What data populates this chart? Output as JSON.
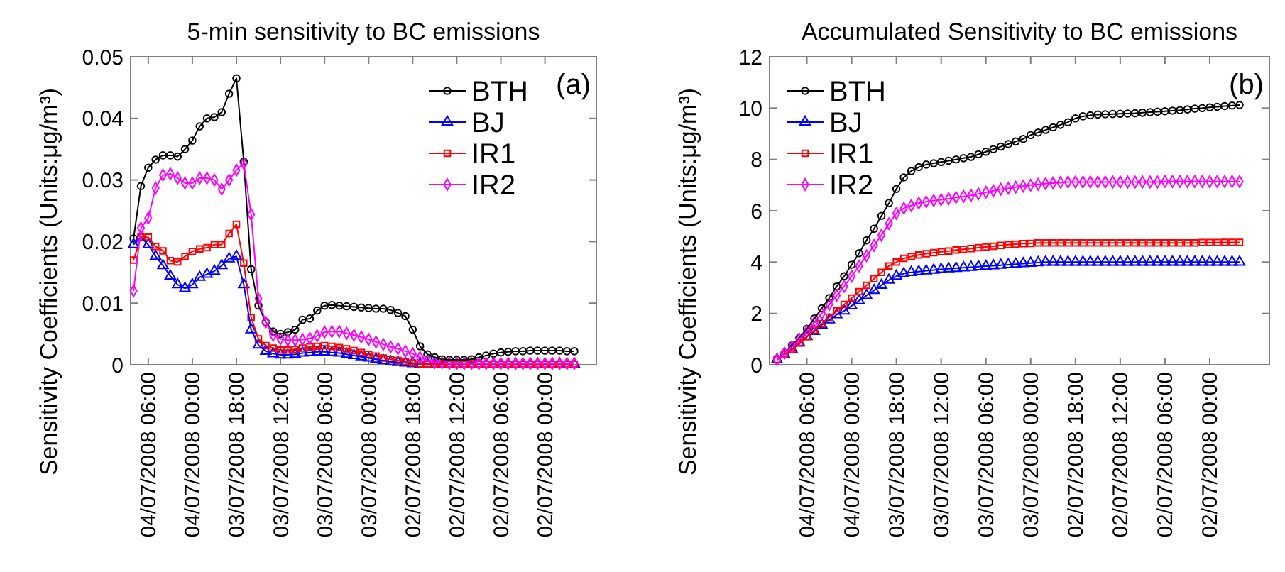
{
  "chart_data": [
    {
      "type": "line",
      "title": "5-min sensitivity to BC emissions",
      "ylabel": "Sensitivity Coefficients (Units:μg/m³)",
      "annotations": [
        "(a)"
      ],
      "legend": "top right",
      "grid": false,
      "x": [
        "2008-07-04T08:00",
        "2008-07-04T07:00",
        "2008-07-04T06:00",
        "2008-07-04T05:00",
        "2008-07-04T04:00",
        "2008-07-04T03:00",
        "2008-07-04T02:00",
        "2008-07-04T01:00",
        "2008-07-04T00:00",
        "2008-07-03T23:00",
        "2008-07-03T22:00",
        "2008-07-03T21:00",
        "2008-07-03T20:00",
        "2008-07-03T19:00",
        "2008-07-03T18:00",
        "2008-07-03T17:00",
        "2008-07-03T16:00",
        "2008-07-03T15:00",
        "2008-07-03T14:00",
        "2008-07-03T13:00",
        "2008-07-03T12:00",
        "2008-07-03T11:00",
        "2008-07-03T10:00",
        "2008-07-03T09:00",
        "2008-07-03T08:00",
        "2008-07-03T07:00",
        "2008-07-03T06:00",
        "2008-07-03T05:00",
        "2008-07-03T04:00",
        "2008-07-03T03:00",
        "2008-07-03T02:00",
        "2008-07-03T01:00",
        "2008-07-03T00:00",
        "2008-07-02T23:00",
        "2008-07-02T22:00",
        "2008-07-02T21:00",
        "2008-07-02T20:00",
        "2008-07-02T19:00",
        "2008-07-02T18:00",
        "2008-07-02T17:00",
        "2008-07-02T16:00",
        "2008-07-02T15:00",
        "2008-07-02T14:00",
        "2008-07-02T13:00",
        "2008-07-02T12:00",
        "2008-07-02T11:00",
        "2008-07-02T10:00",
        "2008-07-02T09:00",
        "2008-07-02T08:00",
        "2008-07-02T07:00",
        "2008-07-02T06:00",
        "2008-07-02T05:00",
        "2008-07-02T04:00",
        "2008-07-02T03:00",
        "2008-07-02T02:00",
        "2008-07-02T01:00",
        "2008-07-02T00:00",
        "2008-07-01T23:00",
        "2008-07-01T22:00",
        "2008-07-01T21:00",
        "2008-07-01T20:00"
      ],
      "xlim": [
        "2008-07-04T08:24",
        "2008-07-01T17:00"
      ],
      "ylim": [
        0,
        0.05
      ],
      "yticks": [
        0,
        0.01,
        0.02,
        0.03,
        0.04,
        0.05
      ],
      "xticks": [
        {
          "value": "2008-07-04T06:00",
          "label": "04/07/2008 06:00"
        },
        {
          "value": "2008-07-04T00:00",
          "label": "04/07/2008 00:00"
        },
        {
          "value": "2008-07-03T18:00",
          "label": "03/07/2008 18:00"
        },
        {
          "value": "2008-07-03T12:00",
          "label": "03/07/2008 12:00"
        },
        {
          "value": "2008-07-03T06:00",
          "label": "03/07/2008 06:00"
        },
        {
          "value": "2008-07-03T00:00",
          "label": "03/07/2008 00:00"
        },
        {
          "value": "2008-07-02T18:00",
          "label": "02/07/2008 18:00"
        },
        {
          "value": "2008-07-02T12:00",
          "label": "02/07/2008 12:00"
        },
        {
          "value": "2008-07-02T06:00",
          "label": "02/07/2008 06:00"
        },
        {
          "value": "2008-07-02T00:00",
          "label": "02/07/2008 00:00"
        }
      ],
      "series": [
        {
          "name": "BTH",
          "color": "#000000",
          "marker": "circle",
          "values": [
            0.0205,
            0.029,
            0.032,
            0.0333,
            0.034,
            0.034,
            0.0338,
            0.035,
            0.0364,
            0.0387,
            0.04,
            0.0402,
            0.041,
            0.044,
            0.0465,
            0.033,
            0.0155,
            0.0096,
            0.0069,
            0.0054,
            0.005,
            0.0053,
            0.0057,
            0.0073,
            0.0075,
            0.0088,
            0.0096,
            0.0097,
            0.0096,
            0.0095,
            0.0094,
            0.0093,
            0.0092,
            0.0091,
            0.0091,
            0.0089,
            0.0084,
            0.0079,
            0.0057,
            0.003,
            0.0017,
            0.0012,
            0.0009,
            0.0008,
            0.0008,
            0.0008,
            0.0009,
            0.0012,
            0.0015,
            0.0018,
            0.002,
            0.0021,
            0.0022,
            0.0022,
            0.0023,
            0.0023,
            0.0023,
            0.0023,
            0.0023,
            0.0022,
            0.0022
          ]
        },
        {
          "name": "BJ",
          "color": "#0000ff",
          "marker": "triangle",
          "values": [
            0.0195,
            0.0207,
            0.0195,
            0.0176,
            0.0161,
            0.0144,
            0.013,
            0.0124,
            0.013,
            0.0142,
            0.0147,
            0.0152,
            0.0161,
            0.0172,
            0.0176,
            0.013,
            0.0057,
            0.0032,
            0.0022,
            0.0018,
            0.0016,
            0.0016,
            0.0017,
            0.0019,
            0.002,
            0.0021,
            0.0021,
            0.002,
            0.0019,
            0.0017,
            0.0015,
            0.0013,
            0.0011,
            0.0009,
            0.0007,
            0.0005,
            0.0004,
            0.0003,
            0.0002,
            0.0001,
            0.0001,
            0.0001,
            0.0001,
            0.0001,
            0.0001,
            0.0001,
            0.0001,
            0.0001,
            0.0001,
            0.0001,
            0.0001,
            0.0001,
            0.0001,
            0.0001,
            0.0001,
            0.0001,
            0.0001,
            0.0001,
            0.0001,
            0.0001,
            0.0001
          ]
        },
        {
          "name": "IR1",
          "color": "#ff0000",
          "marker": "square",
          "values": [
            0.017,
            0.0207,
            0.0207,
            0.0192,
            0.0185,
            0.0169,
            0.0167,
            0.0176,
            0.0184,
            0.0188,
            0.019,
            0.0195,
            0.0195,
            0.0213,
            0.0228,
            0.0165,
            0.0077,
            0.0042,
            0.0031,
            0.0027,
            0.0024,
            0.0024,
            0.0025,
            0.0027,
            0.0029,
            0.003,
            0.0031,
            0.003,
            0.0028,
            0.0026,
            0.0023,
            0.002,
            0.0017,
            0.0014,
            0.0011,
            0.0009,
            0.0007,
            0.0005,
            0.0003,
            0.0001,
            0.0001,
            0.0001,
            0.0001,
            0.0001,
            0.0001,
            0.0001,
            0.0001,
            0.0001,
            0.0001,
            0.0001,
            0.0001,
            0.0001,
            0.0001,
            0.0001,
            0.0001,
            0.0001,
            0.0001,
            0.0001,
            0.0001,
            0.0001,
            0.0001
          ]
        },
        {
          "name": "IR2",
          "color": "#ff00ff",
          "marker": "diamond",
          "values": [
            0.012,
            0.0222,
            0.0238,
            0.0287,
            0.0308,
            0.031,
            0.0303,
            0.0295,
            0.0295,
            0.0303,
            0.0303,
            0.03,
            0.0285,
            0.03,
            0.0316,
            0.0327,
            0.0244,
            0.0107,
            0.0069,
            0.0048,
            0.0042,
            0.004,
            0.004,
            0.0041,
            0.0043,
            0.0047,
            0.0053,
            0.0054,
            0.0054,
            0.0051,
            0.0048,
            0.0045,
            0.0041,
            0.0037,
            0.0033,
            0.0029,
            0.0026,
            0.0022,
            0.0018,
            0.0012,
            0.0007,
            0.0004,
            0.0003,
            0.0002,
            0.0002,
            0.0002,
            0.0002,
            0.0002,
            0.0002,
            0.0002,
            0.0002,
            0.0002,
            0.0002,
            0.0002,
            0.0002,
            0.0002,
            0.0002,
            0.0002,
            0.0002,
            0.0002,
            0.0002
          ]
        }
      ]
    },
    {
      "type": "line",
      "title": "Accumulated Sensitivity to BC emissions",
      "ylabel": "Sensitivity Coefficients (Units:μg/m³)",
      "annotations": [
        "(b)"
      ],
      "legend": "top left",
      "grid": false,
      "x": [
        "2008-07-04T10:00",
        "2008-07-04T09:00",
        "2008-07-04T08:00",
        "2008-07-04T07:00",
        "2008-07-04T06:00",
        "2008-07-04T05:00",
        "2008-07-04T04:00",
        "2008-07-04T03:00",
        "2008-07-04T02:00",
        "2008-07-04T01:00",
        "2008-07-04T00:00",
        "2008-07-03T23:00",
        "2008-07-03T22:00",
        "2008-07-03T21:00",
        "2008-07-03T20:00",
        "2008-07-03T19:00",
        "2008-07-03T18:00",
        "2008-07-03T17:00",
        "2008-07-03T16:00",
        "2008-07-03T15:00",
        "2008-07-03T14:00",
        "2008-07-03T13:00",
        "2008-07-03T12:00",
        "2008-07-03T11:00",
        "2008-07-03T10:00",
        "2008-07-03T09:00",
        "2008-07-03T08:00",
        "2008-07-03T07:00",
        "2008-07-03T06:00",
        "2008-07-03T05:00",
        "2008-07-03T04:00",
        "2008-07-03T03:00",
        "2008-07-03T02:00",
        "2008-07-03T01:00",
        "2008-07-03T00:00",
        "2008-07-02T23:00",
        "2008-07-02T22:00",
        "2008-07-02T21:00",
        "2008-07-02T20:00",
        "2008-07-02T19:00",
        "2008-07-02T18:00",
        "2008-07-02T17:00",
        "2008-07-02T16:00",
        "2008-07-02T15:00",
        "2008-07-02T14:00",
        "2008-07-02T13:00",
        "2008-07-02T12:00",
        "2008-07-02T11:00",
        "2008-07-02T10:00",
        "2008-07-02T09:00",
        "2008-07-02T08:00",
        "2008-07-02T07:00",
        "2008-07-02T06:00",
        "2008-07-02T05:00",
        "2008-07-02T04:00",
        "2008-07-02T03:00",
        "2008-07-02T02:00",
        "2008-07-02T01:00",
        "2008-07-02T00:00",
        "2008-07-01T23:00",
        "2008-07-01T22:00",
        "2008-07-01T21:00",
        "2008-07-01T20:00"
      ],
      "xlim": [
        "2008-07-04T11:00",
        "2008-07-01T16:00"
      ],
      "ylim": [
        0,
        12
      ],
      "yticks": [
        0,
        2,
        4,
        6,
        8,
        10,
        12
      ],
      "xticks": [
        {
          "value": "2008-07-04T06:00",
          "label": "04/07/2008 06:00"
        },
        {
          "value": "2008-07-04T00:00",
          "label": "04/07/2008 00:00"
        },
        {
          "value": "2008-07-03T18:00",
          "label": "03/07/2008 18:00"
        },
        {
          "value": "2008-07-03T12:00",
          "label": "03/07/2008 12:00"
        },
        {
          "value": "2008-07-03T06:00",
          "label": "03/07/2008 06:00"
        },
        {
          "value": "2008-07-03T00:00",
          "label": "03/07/2008 00:00"
        },
        {
          "value": "2008-07-02T18:00",
          "label": "02/07/2008 18:00"
        },
        {
          "value": "2008-07-02T12:00",
          "label": "02/07/2008 12:00"
        },
        {
          "value": "2008-07-02T06:00",
          "label": "02/07/2008 06:00"
        },
        {
          "value": "2008-07-02T00:00",
          "label": "02/07/2008 00:00"
        }
      ],
      "series": [
        {
          "name": "BTH",
          "color": "#000000",
          "marker": "circle",
          "values": [
            0.2,
            0.45,
            0.75,
            1.05,
            1.4,
            1.8,
            2.2,
            2.6,
            3.05,
            3.45,
            3.9,
            4.35,
            4.85,
            5.3,
            5.8,
            6.3,
            6.85,
            7.3,
            7.55,
            7.7,
            7.8,
            7.85,
            7.9,
            7.95,
            8.0,
            8.05,
            8.1,
            8.2,
            8.3,
            8.4,
            8.5,
            8.6,
            8.7,
            8.8,
            8.95,
            9.05,
            9.15,
            9.25,
            9.35,
            9.45,
            9.6,
            9.68,
            9.72,
            9.75,
            9.76,
            9.77,
            9.78,
            9.79,
            9.8,
            9.82,
            9.84,
            9.86,
            9.88,
            9.9,
            9.92,
            9.95,
            9.98,
            10.0,
            10.03,
            10.05,
            10.08,
            10.1,
            10.12
          ]
        },
        {
          "name": "BJ",
          "color": "#0000ff",
          "marker": "triangle",
          "values": [
            0.2,
            0.4,
            0.6,
            0.85,
            1.1,
            1.3,
            1.55,
            1.75,
            1.95,
            2.1,
            2.3,
            2.5,
            2.7,
            2.9,
            3.1,
            3.3,
            3.45,
            3.55,
            3.6,
            3.63,
            3.66,
            3.69,
            3.72,
            3.74,
            3.76,
            3.78,
            3.8,
            3.82,
            3.84,
            3.86,
            3.88,
            3.9,
            3.92,
            3.94,
            3.96,
            3.98,
            4.0,
            4.0,
            4.0,
            4.0,
            4.0,
            4.0,
            4.0,
            4.0,
            4.0,
            4.0,
            4.0,
            4.0,
            4.0,
            4.0,
            4.0,
            4.0,
            4.0,
            4.0,
            4.0,
            4.0,
            4.0,
            4.0,
            4.0,
            4.0,
            4.0,
            4.0,
            4.0
          ]
        },
        {
          "name": "IR1",
          "color": "#ff0000",
          "marker": "square",
          "values": [
            0.2,
            0.4,
            0.6,
            0.85,
            1.1,
            1.35,
            1.6,
            1.85,
            2.1,
            2.35,
            2.6,
            2.85,
            3.1,
            3.35,
            3.6,
            3.85,
            4.0,
            4.15,
            4.22,
            4.28,
            4.33,
            4.37,
            4.4,
            4.43,
            4.47,
            4.5,
            4.53,
            4.56,
            4.59,
            4.62,
            4.65,
            4.68,
            4.7,
            4.72,
            4.73,
            4.75,
            4.75,
            4.75,
            4.75,
            4.75,
            4.75,
            4.75,
            4.75,
            4.75,
            4.75,
            4.75,
            4.75,
            4.75,
            4.75,
            4.75,
            4.75,
            4.75,
            4.75,
            4.75,
            4.75,
            4.75,
            4.75,
            4.76,
            4.76,
            4.76,
            4.77,
            4.77,
            4.77
          ]
        },
        {
          "name": "IR2",
          "color": "#ff00ff",
          "marker": "diamond",
          "values": [
            0.2,
            0.45,
            0.7,
            1.0,
            1.3,
            1.65,
            2.0,
            2.35,
            2.7,
            3.05,
            3.45,
            3.85,
            4.25,
            4.65,
            5.05,
            5.5,
            5.9,
            6.1,
            6.2,
            6.3,
            6.35,
            6.4,
            6.43,
            6.47,
            6.52,
            6.56,
            6.6,
            6.66,
            6.72,
            6.78,
            6.84,
            6.88,
            6.92,
            6.96,
            7.0,
            7.03,
            7.06,
            7.08,
            7.1,
            7.12,
            7.12,
            7.12,
            7.12,
            7.12,
            7.12,
            7.12,
            7.12,
            7.12,
            7.12,
            7.12,
            7.12,
            7.12,
            7.14,
            7.14,
            7.14,
            7.14,
            7.14,
            7.14,
            7.14,
            7.14,
            7.14,
            7.14,
            7.14
          ]
        }
      ]
    }
  ]
}
